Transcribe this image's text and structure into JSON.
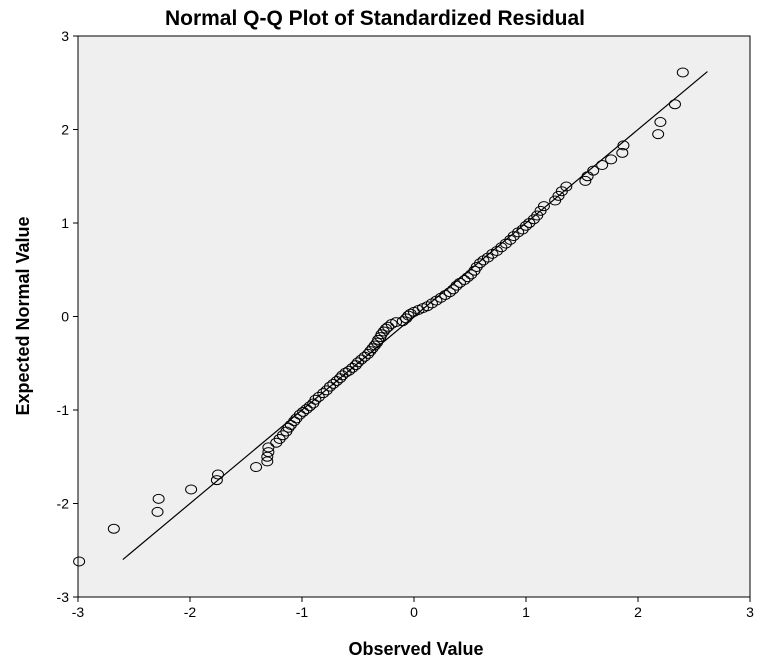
{
  "chart_data": {
    "type": "scatter",
    "title": "Normal Q-Q Plot of Standardized Residual",
    "xlabel": "Observed Value",
    "ylabel": "Expected Normal Value",
    "xlim": [
      -3,
      3
    ],
    "ylim": [
      -3,
      3
    ],
    "x_ticks": [
      "-3",
      "-2",
      "-1",
      "0",
      "1",
      "2",
      "3"
    ],
    "y_ticks": [
      "-3",
      "-2",
      "-1",
      "0",
      "1",
      "2",
      "3"
    ],
    "grid": false,
    "background": "#efefef",
    "reference_line": [
      [
        -2.6,
        -2.6
      ],
      [
        2.62,
        2.62
      ]
    ],
    "points": [
      [
        -2.99,
        -2.62
      ],
      [
        -2.68,
        -2.27
      ],
      [
        -2.29,
        -2.09
      ],
      [
        -2.28,
        -1.95
      ],
      [
        -1.99,
        -1.85
      ],
      [
        -1.76,
        -1.75
      ],
      [
        -1.75,
        -1.69
      ],
      [
        -1.41,
        -1.61
      ],
      [
        -1.31,
        -1.55
      ],
      [
        -1.31,
        -1.5
      ],
      [
        -1.3,
        -1.45
      ],
      [
        -1.3,
        -1.4
      ],
      [
        -1.23,
        -1.35
      ],
      [
        -1.2,
        -1.31
      ],
      [
        -1.17,
        -1.27
      ],
      [
        -1.14,
        -1.23
      ],
      [
        -1.12,
        -1.19
      ],
      [
        -1.1,
        -1.16
      ],
      [
        -1.07,
        -1.12
      ],
      [
        -1.05,
        -1.09
      ],
      [
        -1.02,
        -1.05
      ],
      [
        -0.99,
        -1.02
      ],
      [
        -0.96,
        -0.99
      ],
      [
        -0.93,
        -0.96
      ],
      [
        -0.9,
        -0.93
      ],
      [
        -0.88,
        -0.89
      ],
      [
        -0.85,
        -0.86
      ],
      [
        -0.81,
        -0.82
      ],
      [
        -0.78,
        -0.79
      ],
      [
        -0.75,
        -0.75
      ],
      [
        -0.72,
        -0.72
      ],
      [
        -0.69,
        -0.69
      ],
      [
        -0.66,
        -0.66
      ],
      [
        -0.64,
        -0.63
      ],
      [
        -0.61,
        -0.6
      ],
      [
        -0.58,
        -0.58
      ],
      [
        -0.55,
        -0.55
      ],
      [
        -0.52,
        -0.52
      ],
      [
        -0.5,
        -0.49
      ],
      [
        -0.47,
        -0.46
      ],
      [
        -0.44,
        -0.43
      ],
      [
        -0.41,
        -0.4
      ],
      [
        -0.39,
        -0.37
      ],
      [
        -0.37,
        -0.34
      ],
      [
        -0.35,
        -0.31
      ],
      [
        -0.33,
        -0.28
      ],
      [
        -0.32,
        -0.25
      ],
      [
        -0.3,
        -0.22
      ],
      [
        -0.29,
        -0.19
      ],
      [
        -0.27,
        -0.16
      ],
      [
        -0.25,
        -0.13
      ],
      [
        -0.23,
        -0.11
      ],
      [
        -0.2,
        -0.08
      ],
      [
        -0.16,
        -0.06
      ],
      [
        -0.1,
        -0.05
      ],
      [
        -0.07,
        -0.02
      ],
      [
        -0.05,
        0.01
      ],
      [
        -0.03,
        0.03
      ],
      [
        0.0,
        0.05
      ],
      [
        0.04,
        0.07
      ],
      [
        0.08,
        0.09
      ],
      [
        0.12,
        0.11
      ],
      [
        0.16,
        0.14
      ],
      [
        0.2,
        0.17
      ],
      [
        0.24,
        0.2
      ],
      [
        0.28,
        0.23
      ],
      [
        0.32,
        0.26
      ],
      [
        0.35,
        0.29
      ],
      [
        0.38,
        0.33
      ],
      [
        0.41,
        0.36
      ],
      [
        0.45,
        0.39
      ],
      [
        0.48,
        0.42
      ],
      [
        0.51,
        0.45
      ],
      [
        0.54,
        0.49
      ],
      [
        0.56,
        0.53
      ],
      [
        0.59,
        0.57
      ],
      [
        0.62,
        0.6
      ],
      [
        0.66,
        0.63
      ],
      [
        0.7,
        0.67
      ],
      [
        0.74,
        0.7
      ],
      [
        0.78,
        0.74
      ],
      [
        0.82,
        0.78
      ],
      [
        0.86,
        0.82
      ],
      [
        0.89,
        0.86
      ],
      [
        0.93,
        0.9
      ],
      [
        0.97,
        0.93
      ],
      [
        1.0,
        0.97
      ],
      [
        1.03,
        1.0
      ],
      [
        1.07,
        1.04
      ],
      [
        1.1,
        1.08
      ],
      [
        1.13,
        1.13
      ],
      [
        1.16,
        1.18
      ],
      [
        1.26,
        1.24
      ],
      [
        1.29,
        1.29
      ],
      [
        1.32,
        1.34
      ],
      [
        1.36,
        1.39
      ],
      [
        1.53,
        1.45
      ],
      [
        1.55,
        1.5
      ],
      [
        1.6,
        1.56
      ],
      [
        1.68,
        1.62
      ],
      [
        1.76,
        1.68
      ],
      [
        1.86,
        1.75
      ],
      [
        1.87,
        1.83
      ],
      [
        2.18,
        1.95
      ],
      [
        2.2,
        2.08
      ],
      [
        2.33,
        2.27
      ],
      [
        2.4,
        2.61
      ]
    ]
  }
}
